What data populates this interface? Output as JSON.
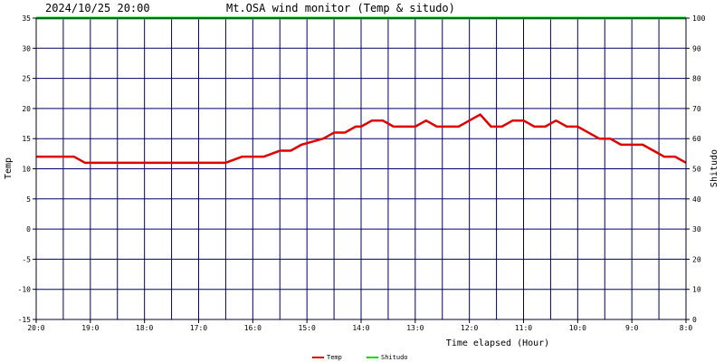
{
  "header": {
    "datetime": "2024/10/25 20:00",
    "title": "Mt.OSA wind monitor (Temp & situdo)"
  },
  "chart_data": {
    "type": "line",
    "xlabel": "Time elapsed (Hour)",
    "ylabel_left": "Temp",
    "ylabel_right": "Shitudo",
    "ylim_left": [
      -15,
      35
    ],
    "ylim_right": [
      0,
      100
    ],
    "yticks_left": [
      "35",
      "30",
      "25",
      "20",
      "15",
      "10",
      "5",
      "0",
      "-5",
      "-10",
      "-15"
    ],
    "yticks_right": [
      "100",
      "90",
      "80",
      "70",
      "60",
      "50",
      "40",
      "30",
      "20",
      "10",
      "0"
    ],
    "xticks": [
      {
        "hours_ago": 12,
        "label": "20:0"
      },
      {
        "hours_ago": 11,
        "label": "19:0"
      },
      {
        "hours_ago": 10,
        "label": "18:0"
      },
      {
        "hours_ago": 9,
        "label": "17:0"
      },
      {
        "hours_ago": 8,
        "label": "16:0"
      },
      {
        "hours_ago": 7,
        "label": "15:0"
      },
      {
        "hours_ago": 6,
        "label": "14:0"
      },
      {
        "hours_ago": 5,
        "label": "13:0"
      },
      {
        "hours_ago": 4,
        "label": "12:0"
      },
      {
        "hours_ago": 3,
        "label": "11:0"
      },
      {
        "hours_ago": 2,
        "label": "10:0"
      },
      {
        "hours_ago": 1,
        "label": "9:0"
      },
      {
        "hours_ago": 0,
        "label": "8:0"
      }
    ],
    "grid": true,
    "legend_position": "bottom-center",
    "series": [
      {
        "name": "Temp",
        "color": "#e00000",
        "axis": "left",
        "x": [
          12,
          11.6,
          11.3,
          11.1,
          10.8,
          10.5,
          10.2,
          9.9,
          9.6,
          9.3,
          9.0,
          8.7,
          8.5,
          8.2,
          8.0,
          7.8,
          7.5,
          7.3,
          7.1,
          6.9,
          6.7,
          6.5,
          6.3,
          6.1,
          6.0,
          5.8,
          5.6,
          5.4,
          5.2,
          5.0,
          4.8,
          4.6,
          4.4,
          4.2,
          4.0,
          3.8,
          3.6,
          3.4,
          3.2,
          3.0,
          2.8,
          2.6,
          2.4,
          2.2,
          2.0,
          1.8,
          1.6,
          1.4,
          1.2,
          1.0,
          0.8,
          0.6,
          0.4,
          0.2,
          0.0
        ],
        "y": [
          12,
          12,
          12,
          11,
          11,
          11,
          11,
          11,
          11,
          11,
          11,
          11,
          11,
          12,
          12,
          12,
          13,
          13,
          14,
          14.5,
          15,
          16,
          16,
          17,
          17,
          18,
          18,
          17,
          17,
          17,
          18,
          17,
          17,
          17,
          18,
          19,
          17,
          17,
          18,
          18,
          17,
          17,
          18,
          17,
          17,
          16,
          15,
          15,
          14,
          14,
          14,
          13,
          12,
          12,
          11
        ]
      },
      {
        "name": "Shitudo",
        "color": "#00dd00",
        "axis": "right",
        "x": [
          12,
          0
        ],
        "y": [
          100,
          100
        ]
      }
    ]
  }
}
